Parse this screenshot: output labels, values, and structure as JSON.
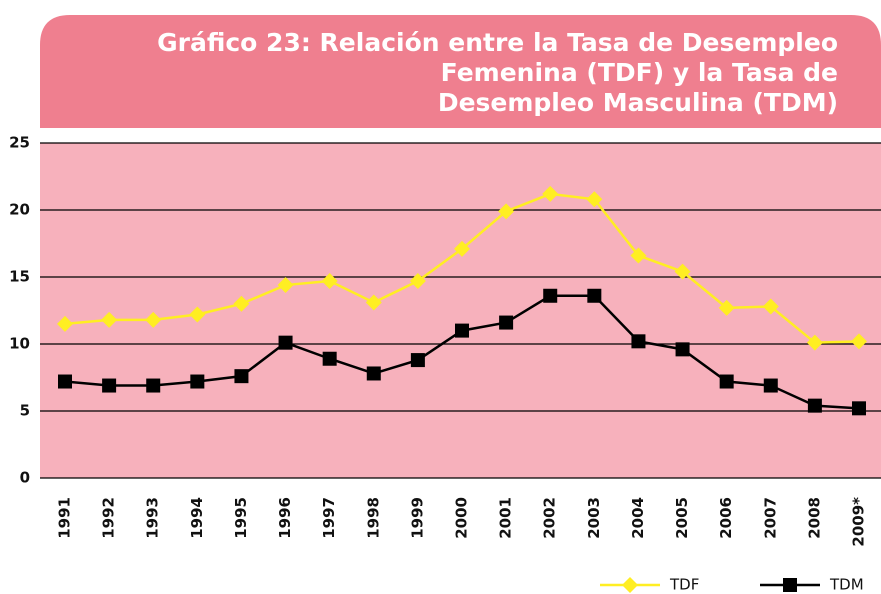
{
  "chart_data": {
    "type": "line",
    "title": [
      "Gráfico 23: Relación entre la Tasa de Desempleo",
      "Femenina (TDF) y la Tasa de",
      "Desempleo Masculina (TDM)"
    ],
    "categories": [
      "1991",
      "1992",
      "1993",
      "1994",
      "1995",
      "1996",
      "1997",
      "1998",
      "1999",
      "2000",
      "2001",
      "2002",
      "2003",
      "2004",
      "2005",
      "2006",
      "2007",
      "2008",
      "2009*"
    ],
    "series": [
      {
        "name": "TDF",
        "color": "#ffee22",
        "marker": "diamond",
        "values": [
          11.5,
          11.8,
          11.8,
          12.2,
          13.0,
          14.4,
          14.7,
          13.1,
          14.7,
          17.1,
          19.9,
          21.2,
          20.8,
          16.6,
          15.4,
          12.7,
          12.8,
          10.1,
          10.2
        ]
      },
      {
        "name": "TDM",
        "color": "#000000",
        "marker": "square",
        "values": [
          7.2,
          6.9,
          6.9,
          7.2,
          7.6,
          10.1,
          8.9,
          7.8,
          8.8,
          11.0,
          11.6,
          13.6,
          13.6,
          10.2,
          9.6,
          7.2,
          6.9,
          5.4,
          5.2
        ]
      }
    ],
    "ylim": [
      0,
      25
    ],
    "yticks": [
      0,
      5,
      10,
      15,
      20,
      25
    ],
    "grid": true
  }
}
